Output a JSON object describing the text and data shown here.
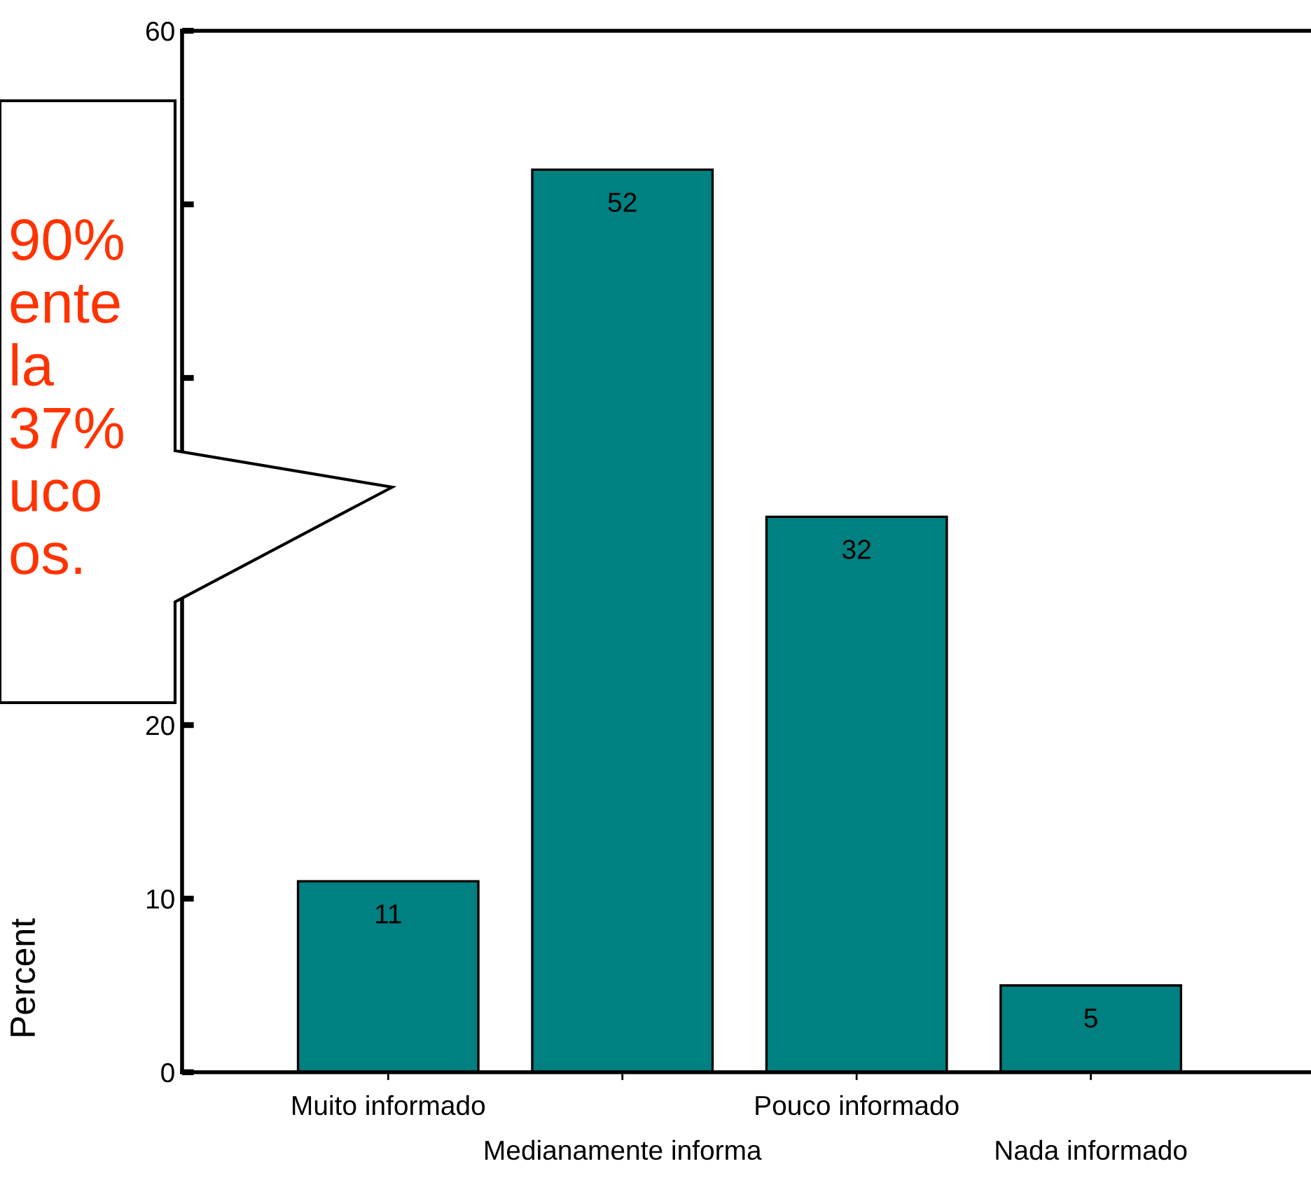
{
  "chart_data": {
    "type": "bar",
    "ylabel": "Percent",
    "categories": [
      "Muito informado",
      "Medianamente informa",
      "Pouco informado",
      "Nada informado"
    ],
    "values": [
      11,
      52,
      32,
      5
    ],
    "color": "#008080",
    "ylim": [
      0,
      60
    ],
    "yticks": [
      0,
      10,
      20,
      {
        "value": 30,
        "label": null
      },
      {
        "value": 40,
        "label": null
      },
      {
        "value": 50,
        "label": null
      },
      60
    ],
    "data_labels": true,
    "grid": false,
    "legend": false,
    "annotations": [
      "90%\nente\nla\n37%\nuco\nos."
    ]
  }
}
